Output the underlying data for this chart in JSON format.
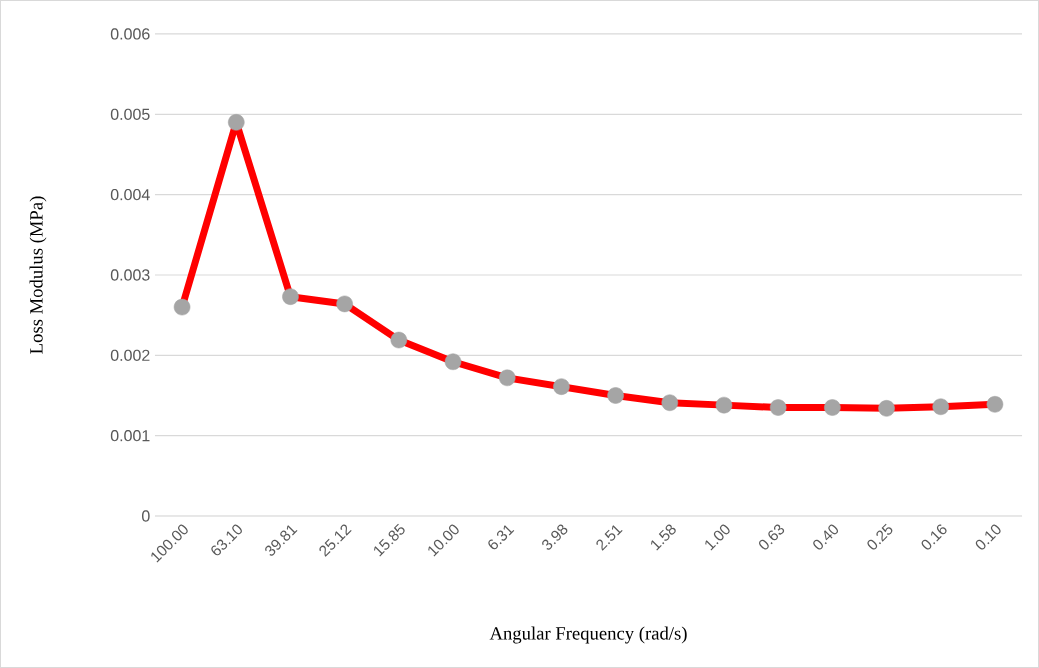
{
  "chart_data": {
    "type": "line",
    "xlabel": "Angular Frequency (rad/s)",
    "ylabel": "Loss Modulus (MPa)",
    "categories": [
      "100.00",
      "63.10",
      "39.81",
      "25.12",
      "15.85",
      "10.00",
      "6.31",
      "3.98",
      "2.51",
      "1.58",
      "1.00",
      "0.63",
      "0.40",
      "0.25",
      "0.16",
      "0.10"
    ],
    "series": [
      {
        "color": "#ff0000",
        "colors": [
          "#a5a5a5",
          "#a5a5a5",
          "#a5a5a5",
          "#a5a5a5",
          "#a5a5a5",
          "#a5a5a5",
          "#a5a5a5",
          "#a5a5a5",
          "#a5a5a5",
          "#a5a5a5",
          "#a5a5a5",
          "#a5a5a5",
          "#a5a5a5",
          "#a5a5a5",
          "#a5a5a5",
          "#a5a5a5"
        ],
        "values": [
          0.0026,
          0.0049,
          0.00273,
          0.00264,
          0.00219,
          0.00192,
          0.00172,
          0.00161,
          0.0015,
          0.00141,
          0.00138,
          0.00135,
          0.00135,
          0.00134,
          0.00136,
          0.00139
        ]
      }
    ],
    "ylim": [
      0,
      0.006
    ],
    "yticks": [
      0,
      0.001,
      0.002,
      0.003,
      0.004,
      0.005,
      0.006
    ],
    "grid": "y",
    "marker": "circle",
    "line_style": "solid"
  }
}
